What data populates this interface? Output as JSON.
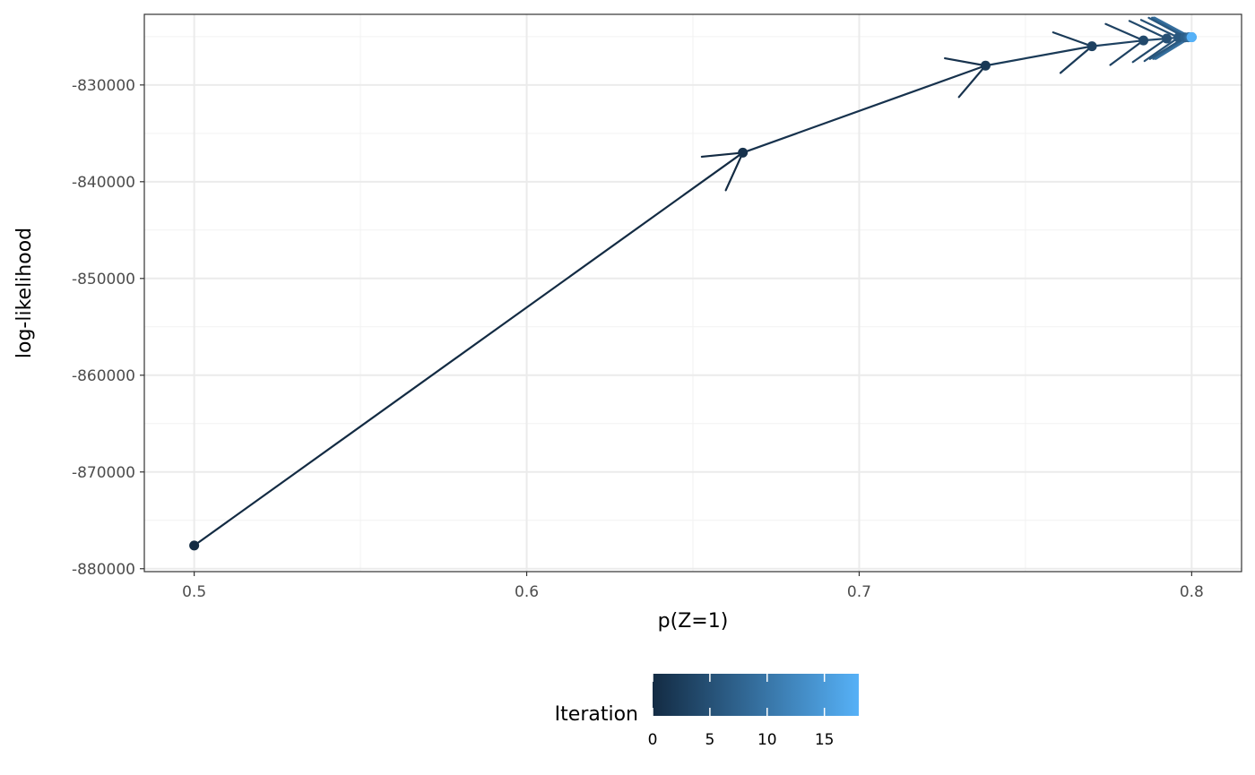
{
  "chart_data": {
    "type": "line",
    "xlabel": "p(Z=1)",
    "ylabel": "log-likelihood",
    "xlim": [
      0.485,
      0.815
    ],
    "ylim": [
      -880300,
      -822700
    ],
    "xticks": [
      0.5,
      0.6,
      0.7,
      0.8
    ],
    "xtick_labels": [
      "0.5",
      "0.6",
      "0.7",
      "0.8"
    ],
    "yticks": [
      -880000,
      -870000,
      -860000,
      -850000,
      -840000,
      -830000
    ],
    "ytick_labels": [
      "-880000",
      "-870000",
      "-860000",
      "-850000",
      "-840000",
      "-830000"
    ],
    "grid": true,
    "points": [
      {
        "iteration": 0,
        "x": 0.5,
        "y": -877600
      },
      {
        "iteration": 1,
        "x": 0.665,
        "y": -837000
      },
      {
        "iteration": 2,
        "x": 0.738,
        "y": -828000
      },
      {
        "iteration": 3,
        "x": 0.77,
        "y": -826000
      },
      {
        "iteration": 4,
        "x": 0.7855,
        "y": -825400
      },
      {
        "iteration": 5,
        "x": 0.7925,
        "y": -825200
      },
      {
        "iteration": 6,
        "x": 0.796,
        "y": -825100
      },
      {
        "iteration": 7,
        "x": 0.798,
        "y": -825080
      },
      {
        "iteration": 8,
        "x": 0.799,
        "y": -825070
      },
      {
        "iteration": 9,
        "x": 0.7995,
        "y": -825065
      },
      {
        "iteration": 10,
        "x": 0.7998,
        "y": -825062
      },
      {
        "iteration": 11,
        "x": 0.7999,
        "y": -825061
      },
      {
        "iteration": 12,
        "x": 0.79995,
        "y": -825060
      },
      {
        "iteration": 13,
        "x": 0.79998,
        "y": -825060
      },
      {
        "iteration": 14,
        "x": 0.79999,
        "y": -825060
      },
      {
        "iteration": 15,
        "x": 0.8,
        "y": -825060
      },
      {
        "iteration": 16,
        "x": 0.8,
        "y": -825060
      },
      {
        "iteration": 17,
        "x": 0.8,
        "y": -825060
      },
      {
        "iteration": 18,
        "x": 0.8,
        "y": -825060
      }
    ],
    "legend": {
      "title": "Iteration",
      "placement": "bottom",
      "range": [
        0,
        18
      ],
      "ticks": [
        0,
        5,
        10,
        15
      ],
      "tick_labels": [
        "0",
        "5",
        "10",
        "15"
      ],
      "color_low": "#132B43",
      "color_high": "#56B1F7"
    }
  }
}
